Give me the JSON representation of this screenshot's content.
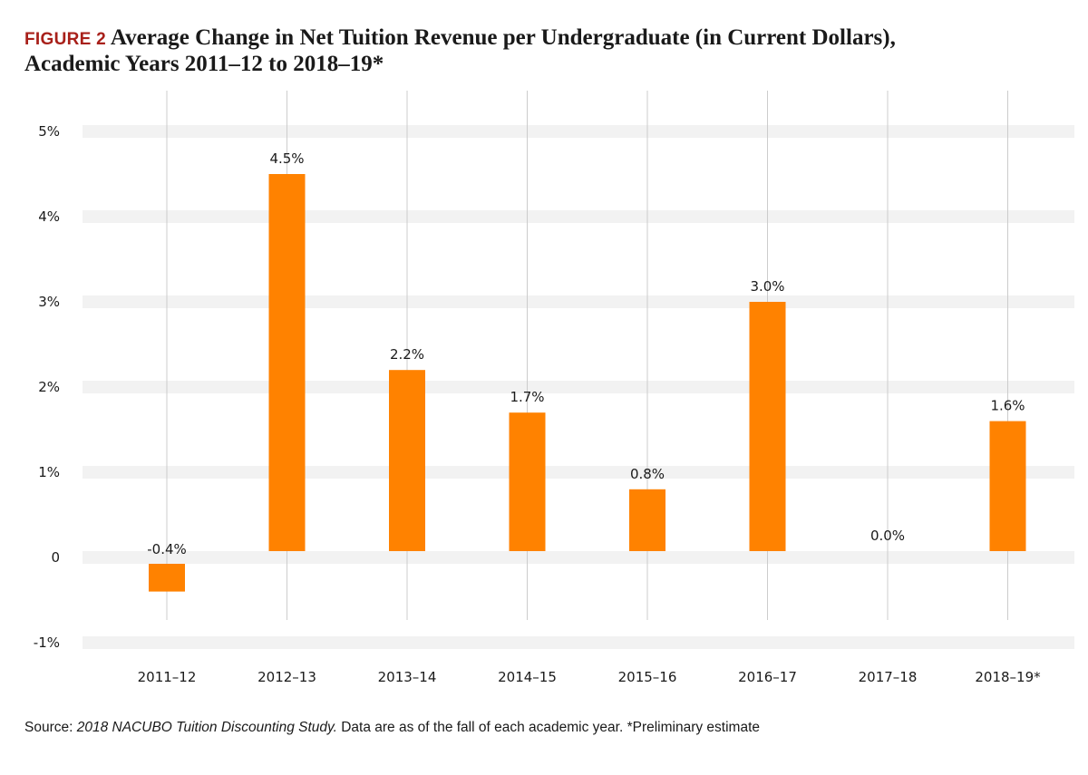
{
  "header": {
    "figure_label": "FIGURE 2",
    "title_line1": "Average Change in Net Tuition Revenue per Undergraduate (in Current Dollars),",
    "title_line2": "Academic Years 2011–12 to 2018–19*"
  },
  "footer": {
    "source_prefix": "Source: ",
    "source_title": "2018 NACUBO Tuition Discounting Study.",
    "source_rest": " Data are as of the fall of each academic year. *Preliminary estimate"
  },
  "colors": {
    "bar": "#ff8200",
    "band": "#f2f2f2",
    "vline": "#cccccc",
    "figure_label": "#a8201a"
  },
  "chart_data": {
    "type": "bar",
    "categories": [
      "2011–12",
      "2012–13",
      "2013–14",
      "2014–15",
      "2015–16",
      "2016–17",
      "2017–18",
      "2018–19*"
    ],
    "values": [
      -0.4,
      4.5,
      2.2,
      1.7,
      0.8,
      3.0,
      0.0,
      1.6
    ],
    "value_labels": [
      "-0.4%",
      "4.5%",
      "2.2%",
      "1.7%",
      "0.8%",
      "3.0%",
      "0.0%",
      "1.6%"
    ],
    "y_ticks": [
      {
        "value": 5,
        "label": "5%"
      },
      {
        "value": 4,
        "label": "4%"
      },
      {
        "value": 3,
        "label": "3%"
      },
      {
        "value": 2,
        "label": "2%"
      },
      {
        "value": 1,
        "label": "1%"
      },
      {
        "value": 0,
        "label": "0"
      },
      {
        "value": -1,
        "label": "-1%"
      }
    ],
    "ylim": [
      -1,
      5
    ],
    "grid": true,
    "legend": "none"
  }
}
